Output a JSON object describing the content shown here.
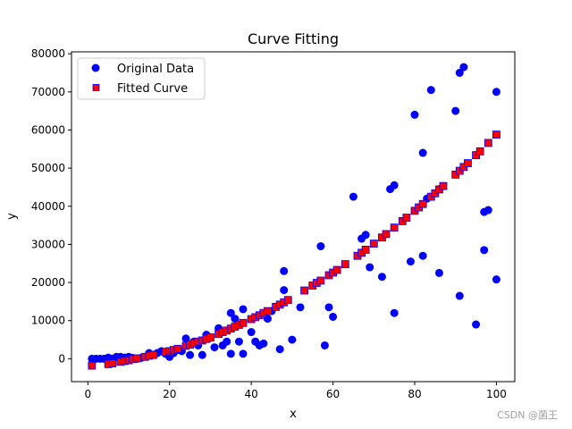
{
  "chart_data": {
    "type": "scatter",
    "title": "Curve Fitting",
    "xlabel": "x",
    "ylabel": "y",
    "xlim": [
      -4,
      104.5
    ],
    "ylim": [
      -6000,
      80500
    ],
    "xticks": [
      0,
      20,
      40,
      60,
      80,
      100
    ],
    "yticks": [
      0,
      10000,
      20000,
      30000,
      40000,
      50000,
      60000,
      70000,
      80000
    ],
    "grid": false,
    "legend_position": "top-left",
    "series": [
      {
        "name": "Original Data",
        "marker": "circle",
        "color": "#0000ff",
        "points": [
          [
            1,
            0
          ],
          [
            2,
            0
          ],
          [
            3,
            0
          ],
          [
            4,
            0
          ],
          [
            5,
            300
          ],
          [
            6,
            0
          ],
          [
            7,
            500
          ],
          [
            8,
            500
          ],
          [
            9,
            300
          ],
          [
            10,
            500
          ],
          [
            11,
            200
          ],
          [
            12,
            0
          ],
          [
            13,
            200
          ],
          [
            15,
            1500
          ],
          [
            16,
            1000
          ],
          [
            17,
            1500
          ],
          [
            18,
            2000
          ],
          [
            19,
            1300
          ],
          [
            20,
            500
          ],
          [
            21,
            1500
          ],
          [
            22,
            2300
          ],
          [
            23,
            2000
          ],
          [
            24,
            5300
          ],
          [
            25,
            1000
          ],
          [
            26,
            4500
          ],
          [
            27,
            3500
          ],
          [
            28,
            1000
          ],
          [
            29,
            6300
          ],
          [
            30,
            5500
          ],
          [
            31,
            3000
          ],
          [
            32,
            8000
          ],
          [
            33,
            3500
          ],
          [
            34,
            4500
          ],
          [
            35,
            12000
          ],
          [
            35,
            1300
          ],
          [
            36,
            10500
          ],
          [
            37,
            4500
          ],
          [
            38,
            13000
          ],
          [
            38,
            1300
          ],
          [
            40,
            7000
          ],
          [
            41,
            4500
          ],
          [
            42,
            3500
          ],
          [
            43,
            4000
          ],
          [
            44,
            10500
          ],
          [
            45,
            12500
          ],
          [
            47,
            2500
          ],
          [
            48,
            18000
          ],
          [
            48,
            23000
          ],
          [
            50,
            5000
          ],
          [
            52,
            13500
          ],
          [
            57,
            29500
          ],
          [
            58,
            3500
          ],
          [
            59,
            13500
          ],
          [
            60,
            11000
          ],
          [
            65,
            42500
          ],
          [
            67,
            31500
          ],
          [
            68,
            32500
          ],
          [
            69,
            24000
          ],
          [
            72,
            21500
          ],
          [
            74,
            44500
          ],
          [
            75,
            12000
          ],
          [
            75,
            45500
          ],
          [
            79,
            25500
          ],
          [
            80,
            64000
          ],
          [
            82,
            27000
          ],
          [
            82,
            54000
          ],
          [
            83,
            42000
          ],
          [
            84,
            70500
          ],
          [
            86,
            44500
          ],
          [
            86,
            22500
          ],
          [
            90,
            65000
          ],
          [
            91,
            75000
          ],
          [
            91,
            16500
          ],
          [
            92,
            76500
          ],
          [
            95,
            9000
          ],
          [
            97,
            38500
          ],
          [
            97,
            28500
          ],
          [
            98,
            39000
          ],
          [
            100,
            70000
          ],
          [
            100,
            20800
          ]
        ]
      },
      {
        "name": "Fitted Curve",
        "marker": "square",
        "color": "#ff0000",
        "edgecolor": "#0000ff",
        "points": [
          [
            1,
            -1800
          ],
          [
            5,
            -1400
          ],
          [
            6,
            -1200
          ],
          [
            8,
            -800
          ],
          [
            9,
            -600
          ],
          [
            10,
            -400
          ],
          [
            11,
            -100
          ],
          [
            12,
            100
          ],
          [
            14,
            500
          ],
          [
            15,
            800
          ],
          [
            16,
            1000
          ],
          [
            19,
            1800
          ],
          [
            20,
            2000
          ],
          [
            21,
            2300
          ],
          [
            22,
            2600
          ],
          [
            24,
            3400
          ],
          [
            25,
            3700
          ],
          [
            26,
            4100
          ],
          [
            27,
            4500
          ],
          [
            28,
            4800
          ],
          [
            29,
            5200
          ],
          [
            30,
            5600
          ],
          [
            32,
            6500
          ],
          [
            33,
            7000
          ],
          [
            34,
            7400
          ],
          [
            35,
            7900
          ],
          [
            36,
            8400
          ],
          [
            37,
            8900
          ],
          [
            38,
            9400
          ],
          [
            40,
            10400
          ],
          [
            41,
            10900
          ],
          [
            42,
            11400
          ],
          [
            43,
            12000
          ],
          [
            44,
            12500
          ],
          [
            46,
            13600
          ],
          [
            47,
            14200
          ],
          [
            48,
            14800
          ],
          [
            49,
            15400
          ],
          [
            53,
            17900
          ],
          [
            55,
            19200
          ],
          [
            56,
            19900
          ],
          [
            57,
            20500
          ],
          [
            59,
            21900
          ],
          [
            60,
            22600
          ],
          [
            61,
            23300
          ],
          [
            63,
            24800
          ],
          [
            66,
            27000
          ],
          [
            67,
            27800
          ],
          [
            68,
            28600
          ],
          [
            70,
            30200
          ],
          [
            72,
            31800
          ],
          [
            73,
            32700
          ],
          [
            75,
            34400
          ],
          [
            77,
            36100
          ],
          [
            78,
            37000
          ],
          [
            80,
            38800
          ],
          [
            81,
            39700
          ],
          [
            82,
            40600
          ],
          [
            84,
            42500
          ],
          [
            85,
            43400
          ],
          [
            86,
            44400
          ],
          [
            87,
            45300
          ],
          [
            90,
            48300
          ],
          [
            91,
            49300
          ],
          [
            92,
            50300
          ],
          [
            93,
            51300
          ],
          [
            95,
            53400
          ],
          [
            96,
            54400
          ],
          [
            98,
            56600
          ],
          [
            100,
            58800
          ]
        ]
      }
    ]
  },
  "watermark": "CSDN @菌王"
}
